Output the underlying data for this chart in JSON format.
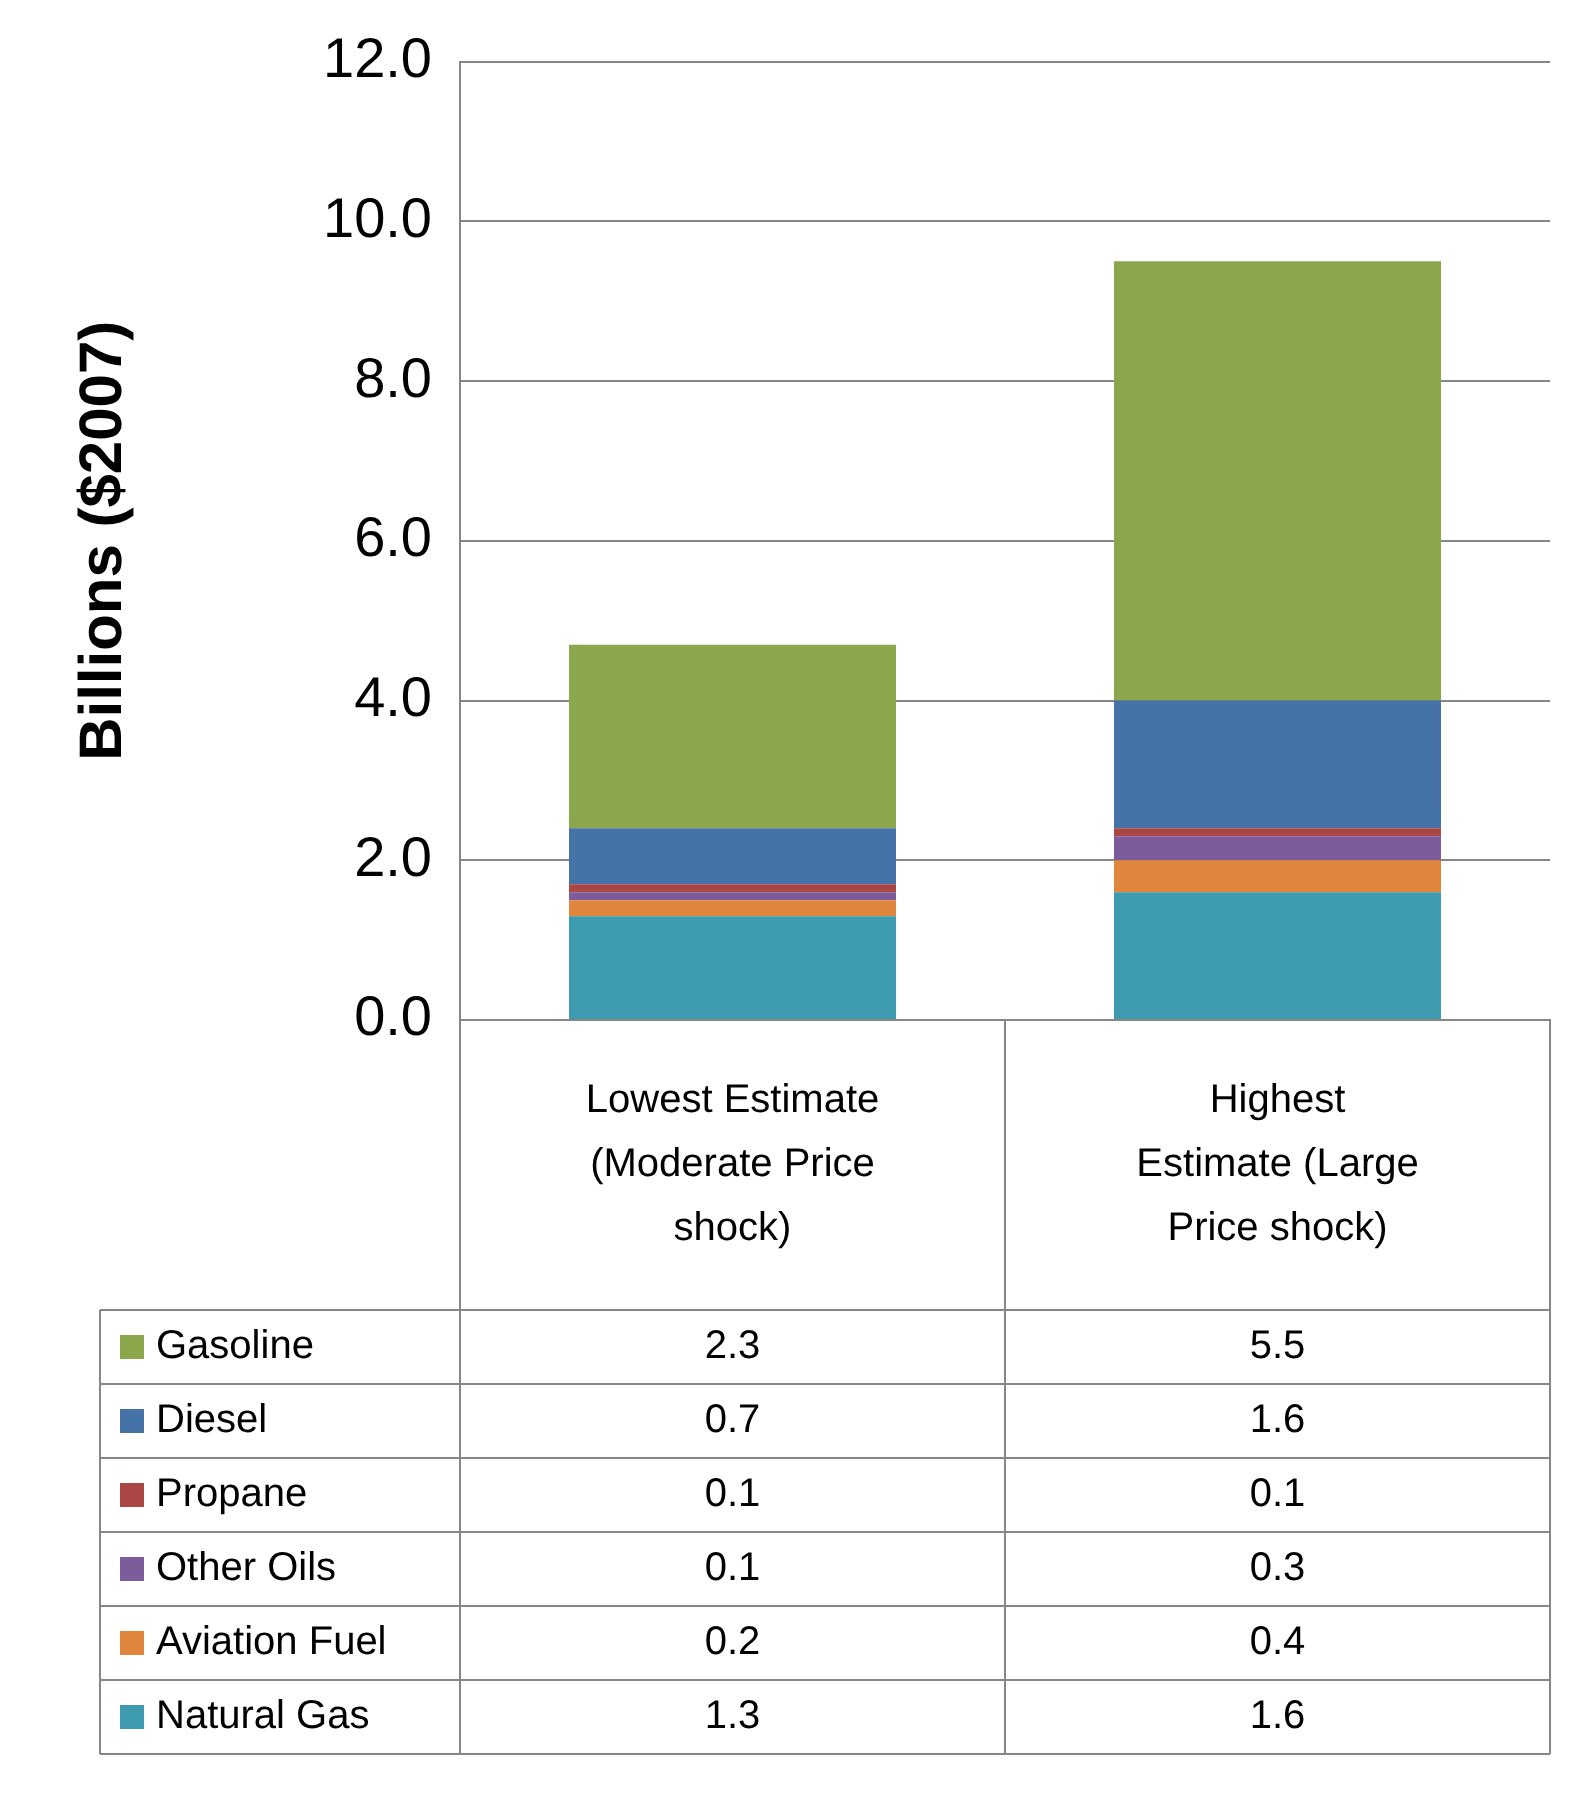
{
  "chart_data": {
    "type": "bar",
    "stacked": true,
    "categories": [
      "Lowest Estimate (Moderate Price shock)",
      "Highest Estimate (Large Price shock)"
    ],
    "series": [
      {
        "name": "Natural Gas",
        "color": "#3e9aaf",
        "values": [
          1.3,
          1.6
        ]
      },
      {
        "name": "Aviation Fuel",
        "color": "#e0853d",
        "values": [
          0.2,
          0.4
        ]
      },
      {
        "name": "Other Oils",
        "color": "#7d5c9b",
        "values": [
          0.1,
          0.3
        ]
      },
      {
        "name": "Propane",
        "color": "#aa4643",
        "values": [
          0.1,
          0.1
        ]
      },
      {
        "name": "Diesel",
        "color": "#4572a7",
        "values": [
          0.7,
          1.6
        ]
      },
      {
        "name": "Gasoline",
        "color": "#8aa84b",
        "values": [
          2.3,
          5.5
        ]
      }
    ],
    "ylabel": "Billions ($2007)",
    "ylim": [
      0,
      12
    ],
    "yticks": [
      {
        "value": 0,
        "label": "0.0"
      },
      {
        "value": 2,
        "label": "2.0"
      },
      {
        "value": 4,
        "label": "4.0"
      },
      {
        "value": 6,
        "label": "6.0"
      },
      {
        "value": 8,
        "label": "8.0"
      },
      {
        "value": 10,
        "label": "10.0"
      },
      {
        "value": 12,
        "label": "12.0"
      }
    ],
    "grid": "y",
    "legend": "bottom left",
    "data_labels": true
  }
}
